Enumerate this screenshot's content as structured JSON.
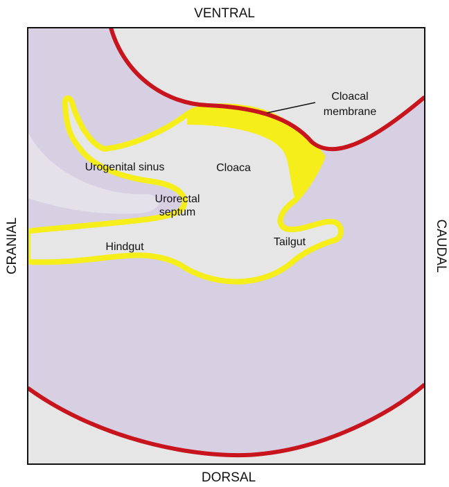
{
  "orientation": {
    "top": "VENTRAL",
    "bottom": "DORSAL",
    "left": "CRANIAL",
    "right": "CAUDAL"
  },
  "labels": {
    "cloacal_membrane": [
      "Cloacal",
      "membrane"
    ],
    "urogenital_sinus": "Urogenital sinus",
    "cloaca": "Cloaca",
    "urorectal_septum": [
      "Urorectal",
      "septum"
    ],
    "hindgut": "Hindgut",
    "tailgut": "Tailgut"
  }
}
